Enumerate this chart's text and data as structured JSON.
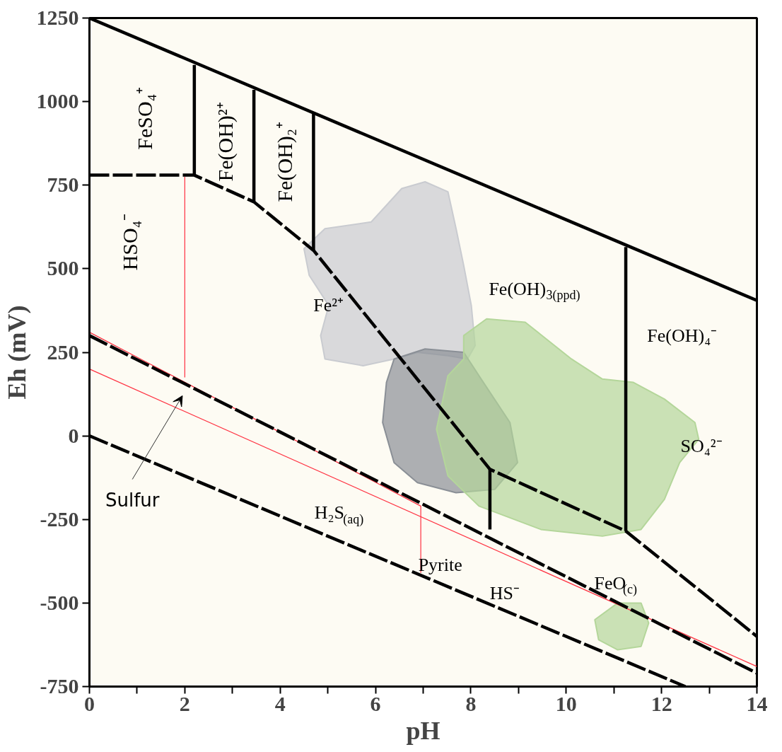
{
  "chart_data": {
    "type": "line",
    "xlabel": "pH",
    "ylabel": "Eh (mV)",
    "xlim": [
      0,
      14
    ],
    "ylim": [
      -750,
      1250
    ],
    "xticks": [
      0,
      {
        "value": 1,
        "label": null
      },
      2,
      {
        "value": 3,
        "label": null
      },
      4,
      {
        "value": 5,
        "label": null
      },
      6,
      {
        "value": 7,
        "label": null
      },
      8,
      {
        "value": 9,
        "label": null
      },
      10,
      {
        "value": 11,
        "label": null
      },
      12,
      {
        "value": 13,
        "label": null
      },
      14
    ],
    "yticks": [
      -750,
      -500,
      -250,
      0,
      250,
      500,
      750,
      1000,
      1250
    ],
    "series": [
      {
        "type": "area",
        "color": "#c9cbd0",
        "x": [
          4.5,
          4.94,
          5.91,
          6.55,
          7.04,
          7.52,
          7.69,
          7.85,
          8.01,
          8.09,
          7.93,
          7.52,
          6.88,
          6.39,
          5.74,
          4.94,
          4.85,
          5.02,
          4.61
        ],
        "values": [
          560,
          620,
          640,
          740,
          760,
          730,
          620,
          510,
          390,
          270,
          230,
          240,
          250,
          230,
          210,
          230,
          300,
          390,
          480
        ]
      },
      {
        "type": "area",
        "color": "#8a8f96",
        "x": [
          6.39,
          7.04,
          7.85,
          8.17,
          8.82,
          8.98,
          8.5,
          7.69,
          6.88,
          6.39,
          6.15,
          6.23
        ],
        "values": [
          230,
          260,
          250,
          180,
          40,
          -80,
          -160,
          -170,
          -140,
          -80,
          40,
          160
        ]
      },
      {
        "type": "area",
        "color": "#b4d69a",
        "x": [
          7.85,
          8.33,
          9.14,
          10.11,
          10.76,
          11.41,
          12.06,
          12.7,
          12.78,
          12.38,
          12.06,
          11.57,
          10.76,
          9.47,
          8.17,
          7.52,
          7.28,
          7.52,
          7.85
        ],
        "values": [
          300,
          350,
          340,
          230,
          170,
          160,
          110,
          40,
          -10,
          -80,
          -190,
          -280,
          -300,
          -280,
          -210,
          -120,
          20,
          180,
          230
        ]
      },
      {
        "type": "area",
        "color": "#b4d69a",
        "x": [
          10.6,
          11.08,
          11.57,
          11.73,
          11.57,
          11.08,
          10.68
        ],
        "values": [
          -550,
          -500,
          -500,
          -560,
          -630,
          -640,
          -610
        ]
      },
      {
        "color": "#ff3040",
        "line_style": "solid",
        "x": [
          2,
          2
        ],
        "values": [
          775,
          175
        ]
      },
      {
        "color": "#ff3040",
        "line_style": "solid",
        "x": [
          0,
          6.95
        ],
        "values": [
          310,
          -210
        ]
      },
      {
        "color": "#ff3040",
        "line_style": "solid",
        "x": [
          0,
          14
        ],
        "values": [
          200,
          -690
        ]
      },
      {
        "color": "#ff3040",
        "line_style": "solid",
        "x": [
          6.95,
          6.95
        ],
        "values": [
          -210,
          -410
        ]
      },
      {
        "color": "#000000",
        "line_style": "solid",
        "x": [
          0,
          14
        ],
        "values": [
          1250,
          405
        ]
      },
      {
        "color": "#000000",
        "line_style": "dashed",
        "x": [
          0,
          12.5
        ],
        "values": [
          0,
          -750
        ]
      },
      {
        "color": "#000000",
        "line_style": "dashed",
        "x": [
          0,
          14
        ],
        "values": [
          300,
          -710
        ]
      },
      {
        "color": "#000000",
        "line_style": "dashed",
        "x": [
          0,
          2.2,
          3.45,
          4.7,
          8.4,
          11.25,
          14
        ],
        "values": [
          780,
          780,
          700,
          555,
          -100,
          -285,
          -600
        ]
      },
      {
        "color": "#000000",
        "line_style": "solid",
        "x": [
          2.2,
          2.2
        ],
        "values": [
          780,
          1110
        ]
      },
      {
        "color": "#000000",
        "line_style": "solid",
        "x": [
          3.45,
          3.45
        ],
        "values": [
          700,
          1035
        ]
      },
      {
        "color": "#000000",
        "line_style": "solid",
        "x": [
          4.7,
          4.7
        ],
        "values": [
          555,
          965
        ]
      },
      {
        "color": "#000000",
        "line_style": "solid",
        "x": [
          8.4,
          8.4
        ],
        "values": [
          -100,
          -280
        ]
      },
      {
        "color": "#000000",
        "line_style": "solid",
        "x": [
          11.25,
          11.25
        ],
        "values": [
          -285,
          565
        ]
      }
    ],
    "annotations": [
      "FeSO₄⁺",
      "Fe(OH)²⁺",
      "Fe(OH)₂⁺",
      "HSO₄⁻",
      "Fe²⁺",
      "Fe(OH)$_{3(ppd)}$",
      "Fe(OH)₄⁻",
      "SO₄²⁻",
      "Sulfur",
      "H₂S$_{(aq)}$",
      "Pyrite",
      "HS⁻",
      "FeO$_{(c)}$"
    ]
  }
}
